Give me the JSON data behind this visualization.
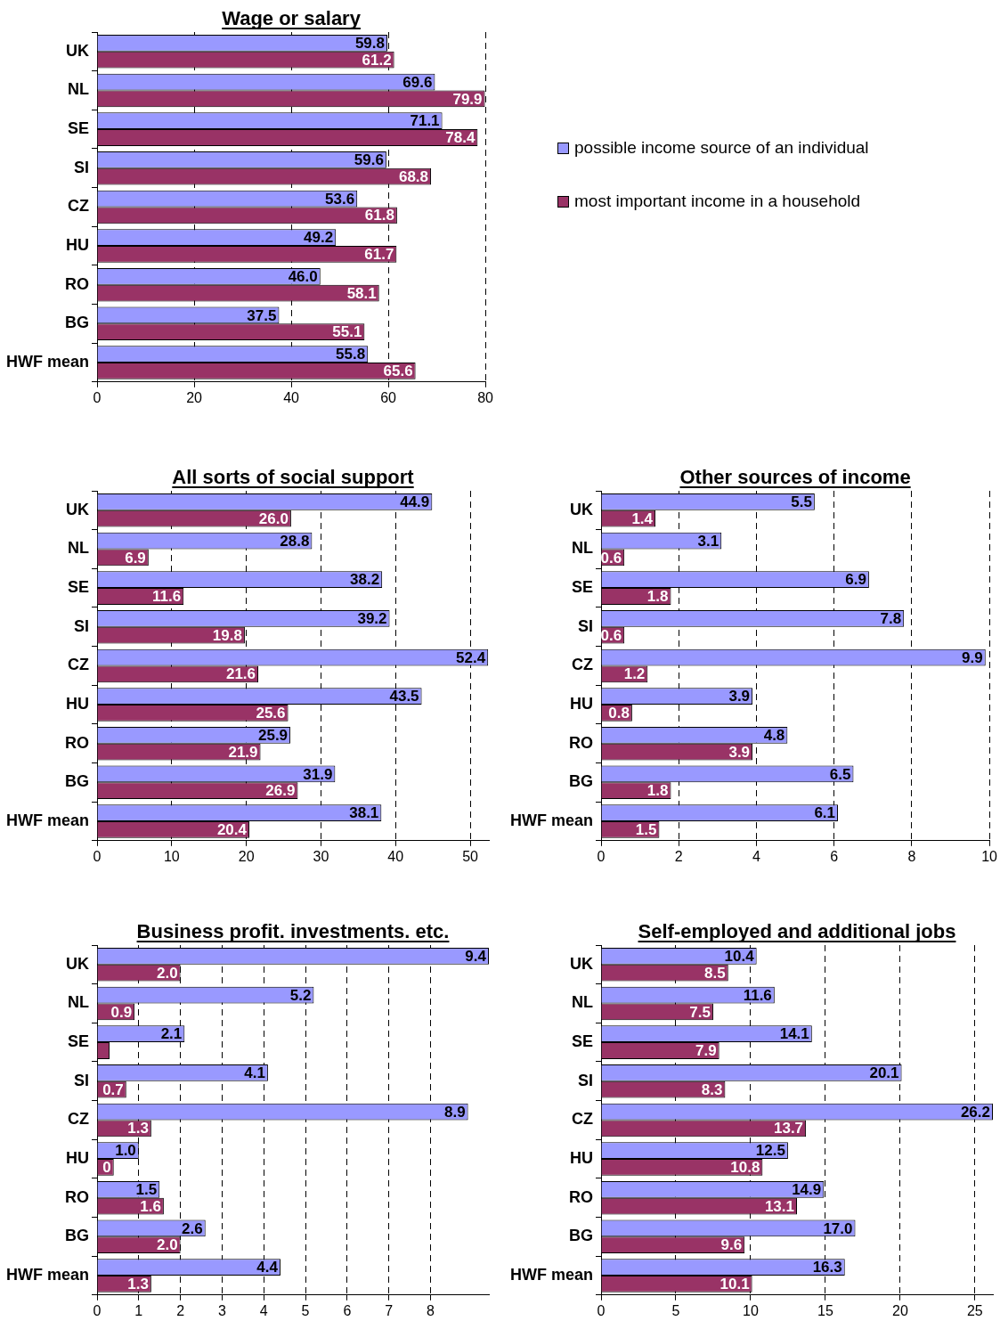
{
  "chart_data": [
    {
      "type": "bar",
      "orientation": "horizontal",
      "title": "Wage or salary",
      "categories": [
        "UK",
        "NL",
        "SE",
        "SI",
        "CZ",
        "HU",
        "RO",
        "BG",
        "HWF mean"
      ],
      "legend": "right",
      "grid": "x",
      "xlim": [
        0,
        80
      ],
      "xticks": [
        0,
        20,
        40,
        60,
        80
      ],
      "series": [
        {
          "name": "possible income source of an individual",
          "color": "#9999ff",
          "values": [
            59.8,
            69.6,
            71.1,
            59.6,
            53.6,
            49.2,
            46.0,
            37.5,
            55.8
          ],
          "value_labels": [
            "59.8",
            "69.6",
            "71.1",
            "59.6",
            "53.6",
            "49.2",
            "46.0",
            "37.5",
            "55.8"
          ]
        },
        {
          "name": "most important income in a household",
          "color": "#993366",
          "values": [
            61.2,
            79.9,
            78.4,
            68.8,
            61.8,
            61.7,
            58.1,
            55.1,
            65.6
          ],
          "value_labels": [
            "61.2",
            "79.9",
            "78.4",
            "68.8",
            "61.8",
            "61.7",
            "58.1",
            "55.1",
            "65.6"
          ]
        }
      ]
    },
    {
      "type": "bar",
      "orientation": "horizontal",
      "title": "All sorts of social support",
      "categories": [
        "UK",
        "NL",
        "SE",
        "SI",
        "CZ",
        "HU",
        "RO",
        "BG",
        "HWF mean"
      ],
      "grid": "x",
      "xlim": [
        0,
        52.5
      ],
      "xticks": [
        0,
        10,
        20,
        30,
        40,
        50
      ],
      "series": [
        {
          "color": "#9999ff",
          "values": [
            44.9,
            28.8,
            38.2,
            39.2,
            52.4,
            43.5,
            25.9,
            31.9,
            38.1
          ],
          "value_labels": [
            "44.9",
            "28.8",
            "38.2",
            "39.2",
            "52.4",
            "43.5",
            "25.9",
            "31.9",
            "38.1"
          ]
        },
        {
          "color": "#993366",
          "values": [
            26.0,
            6.9,
            11.6,
            19.8,
            21.6,
            25.6,
            21.9,
            26.9,
            20.4
          ],
          "value_labels": [
            "26.0",
            "6.9",
            "11.6",
            "19.8",
            "21.6",
            "25.6",
            "21.9",
            "26.9",
            "20.4"
          ]
        }
      ]
    },
    {
      "type": "bar",
      "orientation": "horizontal",
      "title": "Other sources of income",
      "categories": [
        "UK",
        "NL",
        "SE",
        "SI",
        "CZ",
        "HU",
        "RO",
        "BG",
        "HWF mean"
      ],
      "grid": "x",
      "xlim": [
        0,
        10
      ],
      "xticks": [
        0,
        2,
        4,
        6,
        8,
        10
      ],
      "series": [
        {
          "color": "#9999ff",
          "values": [
            5.5,
            3.1,
            6.9,
            7.8,
            9.9,
            3.9,
            4.8,
            6.5,
            6.1
          ],
          "value_labels": [
            "5.5",
            "3.1",
            "6.9",
            "7.8",
            "9.9",
            "3.9",
            "4.8",
            "6.5",
            "6.1"
          ]
        },
        {
          "color": "#993366",
          "values": [
            1.4,
            0.6,
            1.8,
            0.6,
            1.2,
            0.8,
            3.9,
            1.8,
            1.5
          ],
          "value_labels": [
            "1.4",
            "0.6",
            "1.8",
            "0.6",
            "1.2",
            "0.8",
            "3.9",
            "1.8",
            "1.5"
          ]
        }
      ]
    },
    {
      "type": "bar",
      "orientation": "horizontal",
      "title": "Business profit. investments. etc.",
      "categories": [
        "UK",
        "NL",
        "SE",
        "SI",
        "CZ",
        "HU",
        "RO",
        "BG",
        "HWF mean"
      ],
      "grid": "x",
      "xlim": [
        0,
        9.4
      ],
      "xticks": [
        0,
        1,
        2,
        3,
        4,
        5,
        6,
        7,
        8
      ],
      "series": [
        {
          "color": "#9999ff",
          "values": [
            9.4,
            5.2,
            2.1,
            4.1,
            8.9,
            1.0,
            1.5,
            2.6,
            4.4
          ],
          "value_labels": [
            "9.4",
            "5.2",
            "2.1",
            "4.1",
            "8.9",
            "1.0",
            "1.5",
            "2.6",
            "4.4"
          ]
        },
        {
          "color": "#993366",
          "values": [
            2.0,
            0.9,
            0.3,
            0.7,
            1.3,
            0.4,
            1.6,
            2.0,
            1.3
          ],
          "value_labels": [
            "2.0",
            "0.9",
            null,
            "0.7",
            "1.3",
            "0",
            "1.6",
            "2.0",
            "1.3"
          ]
        }
      ]
    },
    {
      "type": "bar",
      "orientation": "horizontal",
      "title": "Self-employed and additional jobs",
      "categories": [
        "UK",
        "NL",
        "SE",
        "SI",
        "CZ",
        "HU",
        "RO",
        "BG",
        "HWF mean"
      ],
      "grid": "x",
      "xlim": [
        0,
        26.2
      ],
      "xticks": [
        0,
        5,
        10,
        15,
        20,
        25
      ],
      "series": [
        {
          "color": "#9999ff",
          "values": [
            10.4,
            11.6,
            14.1,
            20.1,
            26.2,
            12.5,
            14.9,
            17.0,
            16.3
          ],
          "value_labels": [
            "10.4",
            "11.6",
            "14.1",
            "20.1",
            "26.2",
            "12.5",
            "14.9",
            "17.0",
            "16.3"
          ]
        },
        {
          "color": "#993366",
          "values": [
            8.5,
            7.5,
            7.9,
            8.3,
            13.7,
            10.8,
            13.1,
            9.6,
            10.1
          ],
          "value_labels": [
            "8.5",
            "7.5",
            "7.9",
            "8.3",
            "13.7",
            "10.8",
            "13.1",
            "9.6",
            "10.1"
          ]
        }
      ]
    }
  ]
}
